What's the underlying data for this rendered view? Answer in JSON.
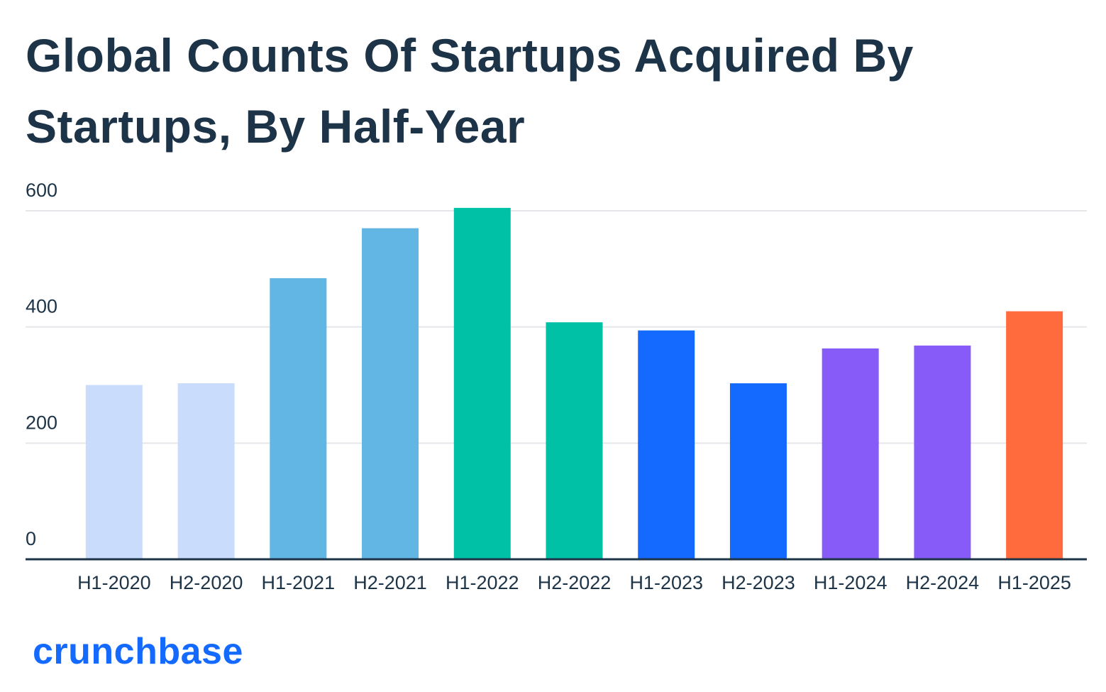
{
  "chart_data": {
    "type": "bar",
    "title": "Global Counts Of Startups Acquired By Startups, By Half-Year",
    "categories": [
      "H1-2020",
      "H2-2020",
      "H1-2021",
      "H2-2021",
      "H1-2022",
      "H2-2022",
      "H1-2023",
      "H2-2023",
      "H1-2024",
      "H2-2024",
      "H1-2025"
    ],
    "values": [
      300,
      303,
      484,
      570,
      605,
      408,
      394,
      303,
      363,
      368,
      427
    ],
    "colors": [
      "#cadcfc",
      "#cadcfc",
      "#62b6e4",
      "#62b6e4",
      "#00c1a6",
      "#00c1a6",
      "#146aff",
      "#146aff",
      "#875bf7",
      "#875bf7",
      "#ff6b3d"
    ],
    "ylim": [
      0,
      600
    ],
    "yticks": [
      0,
      200,
      400,
      600
    ],
    "grid": true,
    "brand": "crunchbase"
  }
}
